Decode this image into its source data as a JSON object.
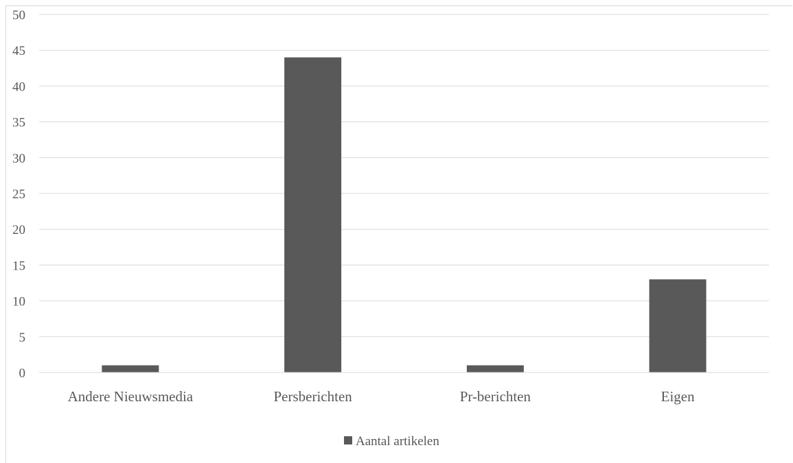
{
  "chart_data": {
    "type": "bar",
    "categories": [
      "Andere Nieuwsmedia",
      "Persberichten",
      "Pr-berichten",
      "Eigen"
    ],
    "series": [
      {
        "name": "Aantal artikelen",
        "values": [
          1,
          44,
          1,
          13
        ],
        "color": "#595959"
      }
    ],
    "yticks": [
      "0",
      "5",
      "10",
      "15",
      "20",
      "25",
      "30",
      "35",
      "40",
      "45",
      "50"
    ],
    "ylim": [
      0,
      50
    ],
    "grid": true,
    "legend_position": "bottom",
    "title": "",
    "xlabel": "",
    "ylabel": ""
  }
}
